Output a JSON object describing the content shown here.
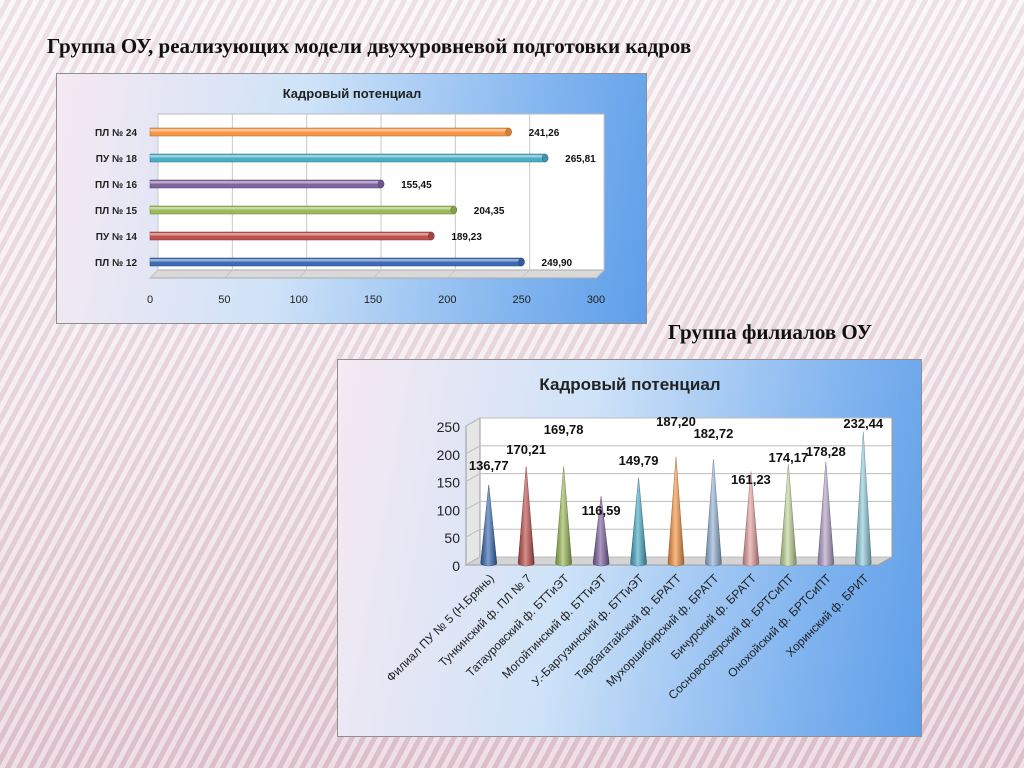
{
  "page": {
    "top_heading": "Группа ОУ, реализующих модели двухуровневой подготовки кадров",
    "bottom_heading": "Группа филиалов ОУ"
  },
  "chart_data": [
    {
      "type": "bar",
      "orientation": "horizontal",
      "title": "Кадровый потенциал",
      "categories": [
        "ПЛ № 12",
        "ПУ № 14",
        "ПЛ № 15",
        "ПЛ № 16",
        "ПУ № 18",
        "ПЛ № 24"
      ],
      "values": [
        249.9,
        189.23,
        204.35,
        155.45,
        265.81,
        241.26
      ],
      "value_labels": [
        "249,90",
        "189,23",
        "204,35",
        "155,45",
        "265,81",
        "241,26"
      ],
      "colors": [
        "#3d6cb4",
        "#c0504d",
        "#9bbb59",
        "#8064a2",
        "#4bacc6",
        "#f79646"
      ],
      "xlim": [
        0,
        300
      ],
      "xticks": [
        0,
        50,
        100,
        150,
        200,
        250,
        300
      ],
      "grid": true,
      "legend": "none"
    },
    {
      "type": "bar",
      "style": "3d-cone",
      "title": "Кадровый потенциал",
      "categories": [
        "Филиал ПУ № 5 (Н.Брянь)",
        "Тункинский ф. ПЛ № 7",
        "Татауровский ф. БТТиЭТ",
        "Могойтинский ф. БТТиЭТ",
        "У.-Баргузинский ф. БТТиЭТ",
        "Тарбагатайский ф. БРАТТ",
        "Мухоршибирский ф. БРАТТ",
        "Бичурский ф. БРАТТ",
        "Сосновоозерский ф. БРТСиПТ",
        "Онохойский ф. БРТСиПТ",
        "Хоринский ф. БРИТ"
      ],
      "values": [
        136.77,
        170.21,
        169.78,
        116.59,
        149.79,
        187.2,
        182.72,
        161.23,
        174.17,
        178.28,
        232.44
      ],
      "value_labels": [
        "136,77",
        "170,21",
        "169,78",
        "116,59",
        "149,79",
        "187,20",
        "182,72",
        "161,23",
        "174,17",
        "178,28",
        "232,44"
      ],
      "colors": [
        "#3d6cb4",
        "#c0504d",
        "#9bbb59",
        "#8064a2",
        "#4bacc6",
        "#f79646",
        "#95b3d7",
        "#e6a1a0",
        "#c3d69b",
        "#b3a2c7",
        "#93cddd"
      ],
      "ylim": [
        0,
        250
      ],
      "yticks": [
        0,
        50,
        100,
        150,
        200,
        250
      ],
      "grid": true,
      "legend": "none"
    }
  ]
}
